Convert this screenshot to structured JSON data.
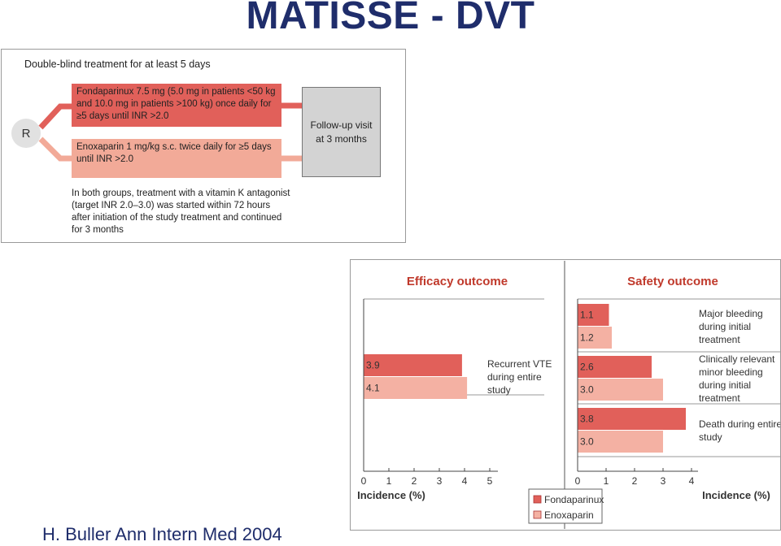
{
  "title": "MATISSE - DVT",
  "citation": "H. Buller Ann Intern Med 2004",
  "design": {
    "header": "Double-blind treatment for at least 5 days",
    "randomization": "R",
    "arm_fondaparinux": "Fondaparinux 7.5 mg (5.0 mg in patients <50 kg and 10.0 mg in patients >100 kg) once daily for ≥5 days until INR >2.0",
    "arm_enoxaparin": "Enoxaparin 1 mg/kg s.c. twice daily for ≥5 days until INR >2.0",
    "followup": "Follow-up visit at 3 months",
    "note": "In both groups, treatment with a vitamin K antagonist (target INR 2.0–3.0) was started within 72 hours after initiation of the study treatment and continued for 3 months"
  },
  "chart_data": [
    {
      "type": "bar",
      "orientation": "horizontal",
      "title": "Efficacy outcome",
      "xlabel": "Incidence (%)",
      "xlim": [
        0,
        5
      ],
      "xticks": [
        "0",
        "1",
        "2",
        "3",
        "4",
        "5"
      ],
      "categories": [
        "Recurrent VTE during entire study"
      ],
      "series": [
        {
          "name": "Fondaparinux",
          "values": [
            3.9
          ]
        },
        {
          "name": "Enoxaparin",
          "values": [
            4.1
          ]
        }
      ]
    },
    {
      "type": "bar",
      "orientation": "horizontal",
      "title": "Safety outcome",
      "xlabel": "Incidence (%)",
      "xlim": [
        0,
        4
      ],
      "xticks": [
        "0",
        "1",
        "2",
        "3",
        "4"
      ],
      "categories": [
        "Major bleeding during initial treatment",
        "Clinically relevant minor bleeding during initial treatment",
        "Death during entire study"
      ],
      "series": [
        {
          "name": "Fondaparinux",
          "values": [
            1.1,
            2.6,
            3.8
          ]
        },
        {
          "name": "Enoxaparin",
          "values": [
            1.2,
            3.0,
            3.0
          ]
        }
      ]
    }
  ],
  "legend": {
    "items": [
      {
        "label": "Fondaparinux",
        "color": "#e1605a"
      },
      {
        "label": "Enoxaparin",
        "color": "#f4b1a3"
      }
    ],
    "placement": "bottom-center"
  },
  "colors": {
    "title": "#1f2d6b",
    "heading": "#c0392b",
    "fondaparinux": "#e1605a",
    "enoxaparin": "#f4b1a3",
    "followup": "#d3d3d3"
  }
}
